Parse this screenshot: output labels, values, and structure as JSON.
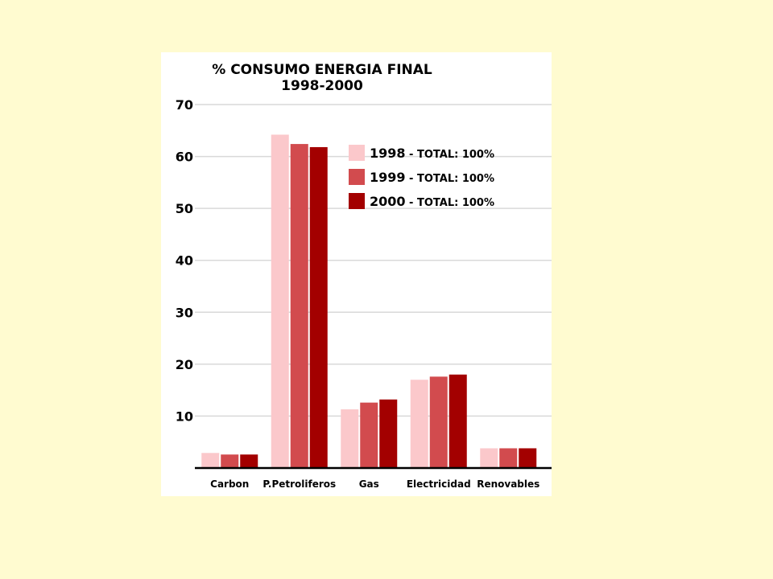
{
  "chart_data": {
    "type": "bar",
    "title_line1": "% CONSUMO ENERGIA FINAL",
    "title_line2": "1998-2000",
    "categories": [
      "Carbon",
      "P.Petroliferos",
      "Gas",
      "Electricidad",
      "Renovables"
    ],
    "yticks": [
      10,
      20,
      30,
      40,
      50,
      60,
      70
    ],
    "ylim": [
      0,
      70
    ],
    "grid": true,
    "legend_position": "top-right",
    "series": [
      {
        "name": "1998",
        "legend_suffix": " - TOTAL: 100%",
        "color": "#FBC8CB",
        "values": [
          2.9,
          64.2,
          11.3,
          17.0,
          3.8
        ]
      },
      {
        "name": "1999",
        "legend_suffix": " - TOTAL: 100%",
        "color": "#D24B4E",
        "values": [
          2.6,
          62.4,
          12.6,
          17.6,
          3.8
        ]
      },
      {
        "name": "2000",
        "legend_suffix": " - TOTAL: 100%",
        "color": "#A30000",
        "values": [
          2.6,
          61.8,
          13.2,
          18.0,
          3.8
        ]
      }
    ]
  }
}
